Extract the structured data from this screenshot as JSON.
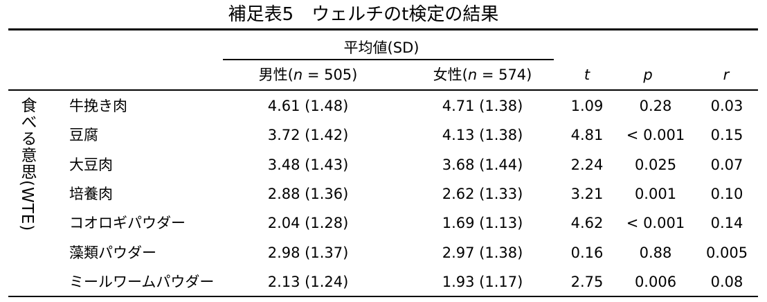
{
  "title": "補足表5　ウェルチのt検定の結果",
  "table": {
    "group_header": "平均値(SD)",
    "columns": {
      "male": [
        "男性(",
        "n",
        " = 505)"
      ],
      "female": [
        "女性(",
        "n",
        " = 574)"
      ],
      "t": "t",
      "p": "p",
      "r": "r"
    },
    "row_group": "食べる意思(WTE)",
    "rows": [
      [
        "牛挽き肉",
        "4.61 (1.48)",
        "4.71 (1.38)",
        "1.09",
        "0.28",
        "0.03"
      ],
      [
        "豆腐",
        "3.72 (1.42)",
        "4.13 (1.38)",
        "4.81",
        "< 0.001",
        "0.15"
      ],
      [
        "大豆肉",
        "3.48 (1.43)",
        "3.68 (1.44)",
        "2.24",
        "0.025",
        "0.07"
      ],
      [
        "培養肉",
        "2.88 (1.36)",
        "2.62 (1.33)",
        "3.21",
        "0.001",
        "0.10"
      ],
      [
        "コオロギパウダー",
        "2.04 (1.28)",
        "1.69 (1.13)",
        "4.62",
        "< 0.001",
        "0.14"
      ],
      [
        "藻類パウダー",
        "2.98 (1.37)",
        "2.97 (1.38)",
        "0.16",
        "0.88",
        "0.005"
      ],
      [
        "ミールワームパウダー",
        "2.13 (1.24)",
        "1.93 (1.17)",
        "2.75",
        "0.006",
        "0.08"
      ]
    ]
  }
}
